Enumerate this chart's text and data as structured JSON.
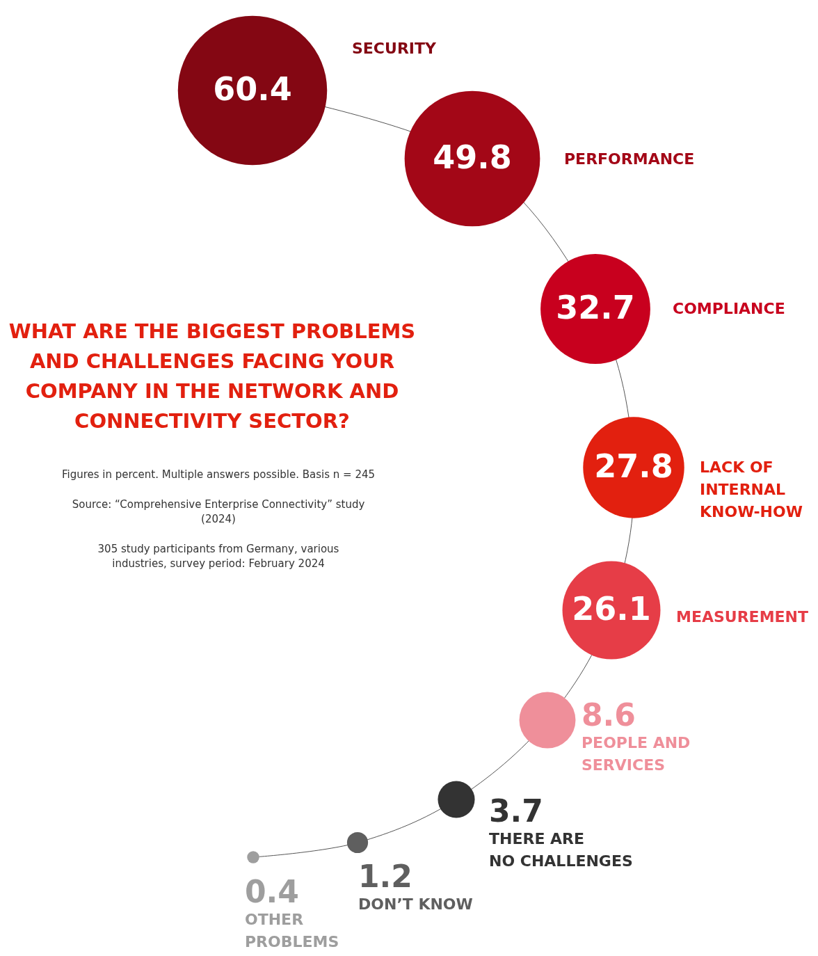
{
  "chart_data": {
    "type": "other",
    "title": "WHAT ARE THE BIGGEST PROBLEMS\nAND CHALLENGES FACING YOUR\nCOMPANY IN THE NETWORK AND\nCONNECTIVITY SECTOR?",
    "categories": [
      "SECURITY",
      "PERFORMANCE",
      "COMPLIANCE",
      "LACK OF\nINTERNAL\nKNOW-HOW",
      "MEASUREMENT",
      "PEOPLE AND\nSERVICES",
      "THERE ARE\nNO CHALLENGES",
      "DON’T KNOW",
      "OTHER\nPROBLEMS"
    ],
    "values": [
      60.4,
      49.8,
      32.7,
      27.8,
      26.1,
      8.6,
      3.7,
      1.2,
      0.4
    ],
    "colors": [
      "#840713",
      "#a30717",
      "#c8001e",
      "#e2200f",
      "#e63d47",
      "#ef8f9a",
      "#333333",
      "#5f5f5f",
      "#9e9e9e"
    ],
    "data_labels": true,
    "annotations": [
      "Figures in percent. Multiple answers possible. Basis n = 245",
      "Source: “Comprehensive Enterprise Connectivity” study\n(2024)",
      "305 study participants from Germany, various\nindustries, survey period: February 2024"
    ]
  }
}
